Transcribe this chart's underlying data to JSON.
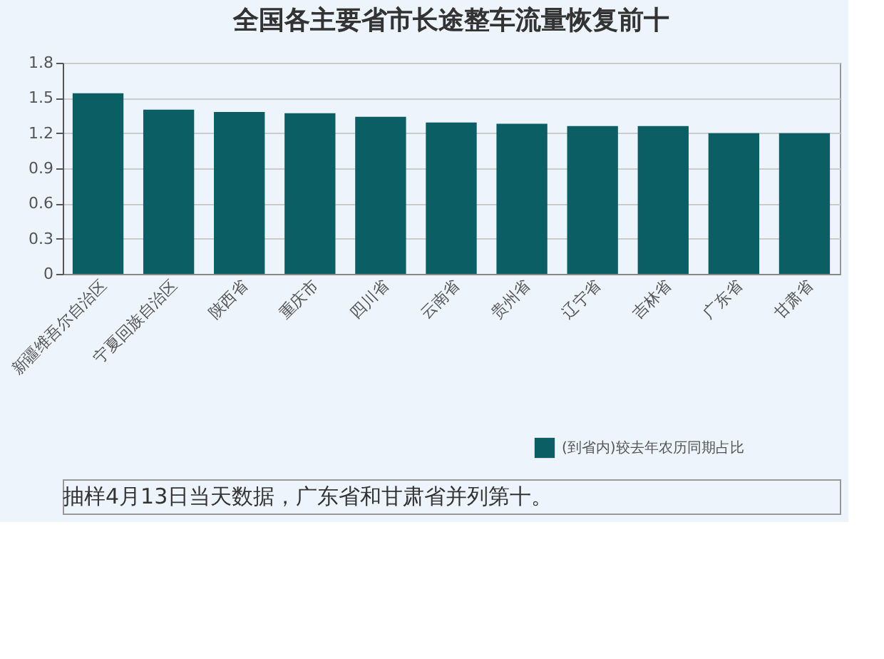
{
  "chart_data": {
    "type": "bar",
    "title": "全国各主要省市长途整车流量恢复前十",
    "categories": [
      "新疆维吾尔自治区",
      "宁夏回族自治区",
      "陕西省",
      "重庆市",
      "四川省",
      "云南省",
      "贵州省",
      "辽宁省",
      "吉林省",
      "广东省",
      "甘肃省"
    ],
    "series": [
      {
        "name": "(到省内)较去年农历同期占比",
        "color": "#0b5e63",
        "values": [
          1.54,
          1.4,
          1.38,
          1.37,
          1.34,
          1.29,
          1.28,
          1.26,
          1.26,
          1.2,
          1.2
        ]
      }
    ],
    "ylim": [
      0,
      1.8
    ],
    "yticks": [
      0,
      0.3,
      0.6,
      0.9,
      1.2,
      1.5,
      1.8
    ],
    "grid": "y",
    "legend": "bottom right",
    "annotations": [
      "抽样4月13日当天数据，广东省和甘肃省并列第十。"
    ]
  }
}
